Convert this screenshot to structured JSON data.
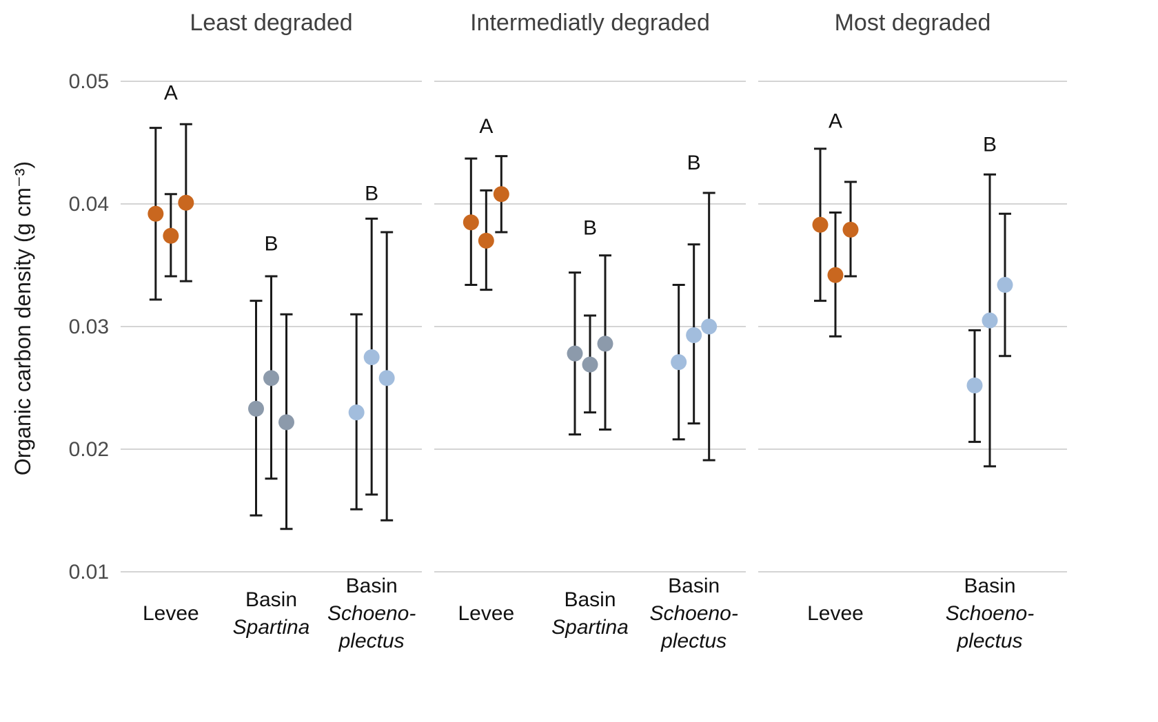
{
  "figure": {
    "background": "#ffffff"
  },
  "chart_data": {
    "type": "scatter",
    "description": "Three-panel dot plot with error bars of organic carbon density by marsh degradation level and habitat zone",
    "ylabel": "Organic carbon density  (g cm⁻³)",
    "ylim": [
      0.01,
      0.05
    ],
    "yticks": [
      0.01,
      0.02,
      0.03,
      0.04,
      0.05
    ],
    "ytick_labels": [
      "0.01",
      "0.02",
      "0.03",
      "0.04",
      "0.05"
    ],
    "grid": "horizontal",
    "legend": "none",
    "error_bars": true,
    "colors": {
      "levee": "#C9671F",
      "basin_spartina": "#8C9AAB",
      "basin_schoenoplectus": "#A2BDDD",
      "errorbar": "#1a1a1a",
      "gridline": "#d4d4d4",
      "title_text": "#3f3f3f",
      "tick_text": "#4a4a4a",
      "axis_text": "#1a1a1a",
      "label_text": "#111111"
    },
    "panels": [
      {
        "title": "Least degraded",
        "groups": [
          {
            "id": "levee",
            "letter": "A",
            "letter_y": 0.0485,
            "color_key": "levee",
            "label_lines": [
              {
                "text": "Levee",
                "italic": false
              }
            ],
            "points": [
              {
                "y": 0.0392,
                "lo": 0.0322,
                "hi": 0.0462
              },
              {
                "y": 0.0374,
                "lo": 0.0341,
                "hi": 0.0408
              },
              {
                "y": 0.0401,
                "lo": 0.0337,
                "hi": 0.0465
              }
            ]
          },
          {
            "id": "basin-spartina",
            "letter": "B",
            "letter_y": 0.0362,
            "color_key": "basin_spartina",
            "label_lines": [
              {
                "text": "Basin",
                "italic": false
              },
              {
                "text": "Spartina",
                "italic": true
              }
            ],
            "points": [
              {
                "y": 0.0233,
                "lo": 0.0146,
                "hi": 0.0321
              },
              {
                "y": 0.0258,
                "lo": 0.0176,
                "hi": 0.0341
              },
              {
                "y": 0.0222,
                "lo": 0.0135,
                "hi": 0.031
              }
            ]
          },
          {
            "id": "basin-schoenoplectus",
            "letter": "B",
            "letter_y": 0.0403,
            "color_key": "basin_schoenoplectus",
            "label_lines": [
              {
                "text": "Basin",
                "italic": false
              },
              {
                "text": "Schoeno-",
                "italic": true
              },
              {
                "text": "plectus",
                "italic": true
              }
            ],
            "points": [
              {
                "y": 0.023,
                "lo": 0.0151,
                "hi": 0.031
              },
              {
                "y": 0.0275,
                "lo": 0.0163,
                "hi": 0.0388
              },
              {
                "y": 0.0258,
                "lo": 0.0142,
                "hi": 0.0377
              }
            ]
          }
        ]
      },
      {
        "title": "Intermediatly degraded",
        "groups": [
          {
            "id": "levee",
            "letter": "A",
            "letter_y": 0.0458,
            "color_key": "levee",
            "label_lines": [
              {
                "text": "Levee",
                "italic": false
              }
            ],
            "points": [
              {
                "y": 0.0385,
                "lo": 0.0334,
                "hi": 0.0437
              },
              {
                "y": 0.037,
                "lo": 0.033,
                "hi": 0.0411
              },
              {
                "y": 0.0408,
                "lo": 0.0377,
                "hi": 0.0439
              }
            ]
          },
          {
            "id": "basin-spartina",
            "letter": "B",
            "letter_y": 0.0375,
            "color_key": "basin_spartina",
            "label_lines": [
              {
                "text": "Basin",
                "italic": false
              },
              {
                "text": "Spartina",
                "italic": true
              }
            ],
            "points": [
              {
                "y": 0.0278,
                "lo": 0.0212,
                "hi": 0.0344
              },
              {
                "y": 0.0269,
                "lo": 0.023,
                "hi": 0.0309
              },
              {
                "y": 0.0286,
                "lo": 0.0216,
                "hi": 0.0358
              }
            ]
          },
          {
            "id": "basin-schoenoplectus",
            "letter": "B",
            "letter_y": 0.0428,
            "color_key": "basin_schoenoplectus",
            "label_lines": [
              {
                "text": "Basin",
                "italic": false
              },
              {
                "text": "Schoeno-",
                "italic": true
              },
              {
                "text": "plectus",
                "italic": true
              }
            ],
            "points": [
              {
                "y": 0.0271,
                "lo": 0.0208,
                "hi": 0.0334
              },
              {
                "y": 0.0293,
                "lo": 0.0221,
                "hi": 0.0367
              },
              {
                "y": 0.03,
                "lo": 0.0191,
                "hi": 0.0409
              }
            ]
          }
        ]
      },
      {
        "title": "Most degraded",
        "groups": [
          {
            "id": "levee",
            "letter": "A",
            "letter_y": 0.0462,
            "color_key": "levee",
            "label_lines": [
              {
                "text": "Levee",
                "italic": false
              }
            ],
            "points": [
              {
                "y": 0.0383,
                "lo": 0.0321,
                "hi": 0.0445
              },
              {
                "y": 0.0342,
                "lo": 0.0292,
                "hi": 0.0393
              },
              {
                "y": 0.0379,
                "lo": 0.0341,
                "hi": 0.0418
              }
            ]
          },
          {
            "id": "basin-schoenoplectus",
            "letter": "B",
            "letter_y": 0.0443,
            "color_key": "basin_schoenoplectus",
            "label_lines": [
              {
                "text": "Basin",
                "italic": false
              },
              {
                "text": "Schoeno-",
                "italic": true
              },
              {
                "text": "plectus",
                "italic": true
              }
            ],
            "points": [
              {
                "y": 0.0252,
                "lo": 0.0206,
                "hi": 0.0297
              },
              {
                "y": 0.0305,
                "lo": 0.0186,
                "hi": 0.0424
              },
              {
                "y": 0.0334,
                "lo": 0.0276,
                "hi": 0.0392
              }
            ]
          }
        ]
      }
    ]
  }
}
